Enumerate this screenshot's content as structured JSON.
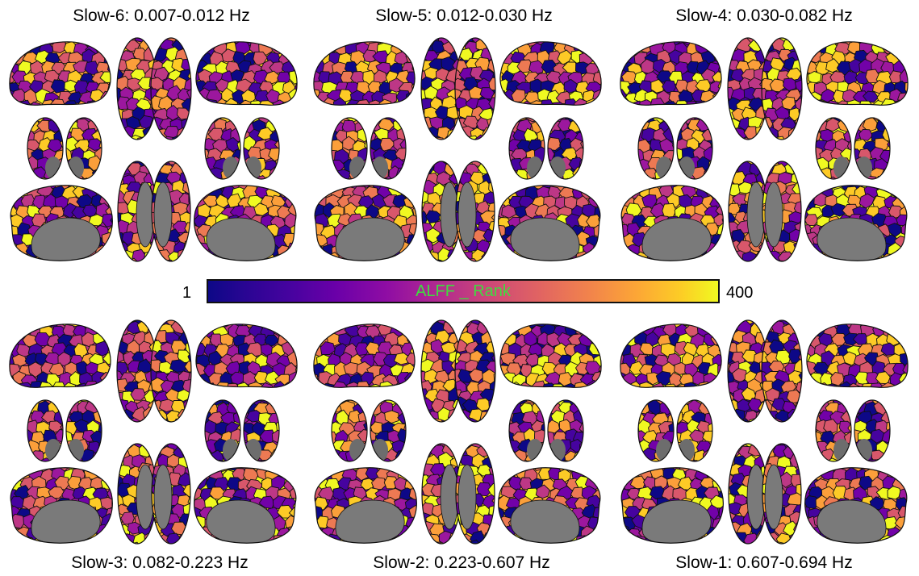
{
  "figure": {
    "panels": [
      {
        "label": "Slow-6: 0.007-0.012 Hz"
      },
      {
        "label": "Slow-5: 0.012-0.030 Hz"
      },
      {
        "label": "Slow-4: 0.030-0.082 Hz"
      },
      {
        "label": "Slow-3: 0.082-0.223 Hz"
      },
      {
        "label": "Slow-2: 0.223-0.607 Hz"
      },
      {
        "label": "Slow-1: 0.607-0.694 Hz"
      }
    ],
    "colorbar": {
      "min_label": "1",
      "max_label": "400",
      "title": "ALFF _ Rank",
      "colormap": [
        "#0d0887",
        "#46039f",
        "#7201a8",
        "#9c179e",
        "#bd3786",
        "#d8576b",
        "#ed7953",
        "#fb9f3a",
        "#fdca26",
        "#f0f921"
      ]
    },
    "medial_wall_color": "#7a7a7a",
    "outline_color": "#111111"
  }
}
